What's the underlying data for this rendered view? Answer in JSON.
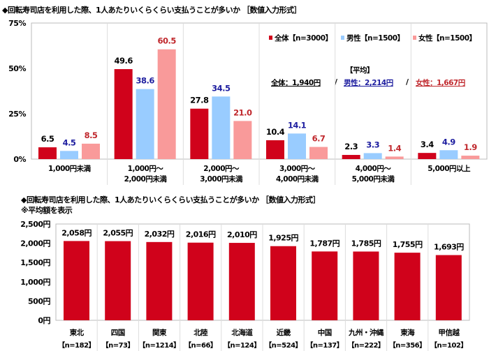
{
  "chart_data": [
    {
      "type": "bar",
      "title": "◆回転寿司店を利用した際、1人あたりいくらくらい支払うことが多いか ［数値入力形式］",
      "categories": [
        [
          "1,000円未満"
        ],
        [
          "1,000円～",
          "2,000円未満"
        ],
        [
          "2,000円～",
          "3,000円未満"
        ],
        [
          "3,000円～",
          "4,000円未満"
        ],
        [
          "4,000円～",
          "5,000円未満"
        ],
        [
          "5,000円以上"
        ]
      ],
      "series": [
        {
          "name": "全体【n=3000】",
          "color": "#d0021b",
          "label_color": "#000000",
          "values": [
            6.5,
            49.6,
            27.8,
            10.4,
            2.3,
            3.4
          ]
        },
        {
          "name": "男性【n=1500】",
          "color": "#99ccff",
          "label_color": "#1f1fa0",
          "values": [
            4.5,
            38.6,
            34.5,
            14.1,
            3.3,
            4.9
          ]
        },
        {
          "name": "女性【n=1500】",
          "color": "#f99a9a",
          "label_color": "#c0282d",
          "values": [
            8.5,
            60.5,
            21.0,
            6.7,
            1.4,
            1.9
          ]
        }
      ],
      "yticks": [
        "0%",
        "25%",
        "50%",
        "75%"
      ],
      "ylim": [
        0,
        75
      ],
      "grid": false,
      "legend": "top-right",
      "average": {
        "heading": "【平均】",
        "items": [
          {
            "text": "全体：1,940円",
            "color": "#000000"
          },
          {
            "text": "男性：2,214円",
            "color": "#1f1fa0"
          },
          {
            "text": "女性：1,667円",
            "color": "#c0282d"
          }
        ],
        "separator": "/"
      }
    },
    {
      "type": "bar",
      "title": "◆回転寿司店を利用した際、1人あたりいくらくらい支払うことが多いか ［数値入力形式］",
      "subtitle": "※平均額を表示",
      "categories": [
        "東北",
        "四国",
        "関東",
        "北陸",
        "北海道",
        "近畿",
        "中国",
        "九州・沖縄",
        "東海",
        "甲信越"
      ],
      "n_labels": [
        "【n=182】",
        "【n=73】",
        "【n=1214】",
        "【n=66】",
        "【n=124】",
        "【n=524】",
        "【n=137】",
        "【n=222】",
        "【n=356】",
        "【n=102】"
      ],
      "values": [
        2058,
        2055,
        2032,
        2016,
        2010,
        1925,
        1787,
        1785,
        1755,
        1693
      ],
      "value_labels": [
        "2,058円",
        "2,055円",
        "2,032円",
        "2,016円",
        "2,010円",
        "1,925円",
        "1,787円",
        "1,785円",
        "1,755円",
        "1,693円"
      ],
      "color": "#d0021b",
      "yticks": [
        "0円",
        "500円",
        "1,000円",
        "1,500円",
        "2,000円",
        "2,500円"
      ],
      "ylim": [
        0,
        2500
      ],
      "grid": false
    }
  ]
}
